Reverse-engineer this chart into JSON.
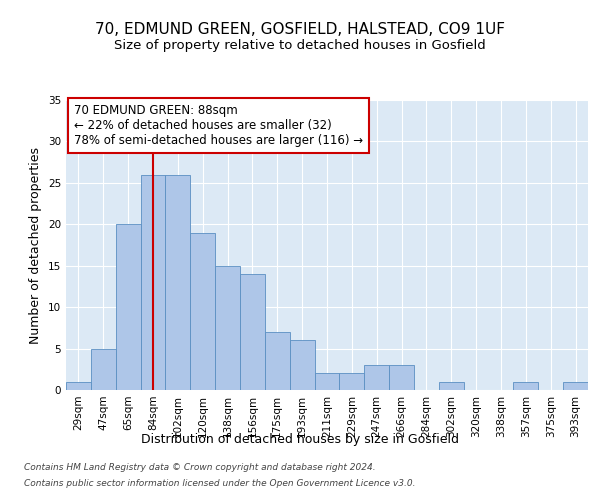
{
  "title_line1": "70, EDMUND GREEN, GOSFIELD, HALSTEAD, CO9 1UF",
  "title_line2": "Size of property relative to detached houses in Gosfield",
  "xlabel": "Distribution of detached houses by size in Gosfield",
  "ylabel": "Number of detached properties",
  "footnote1": "Contains HM Land Registry data © Crown copyright and database right 2024.",
  "footnote2": "Contains public sector information licensed under the Open Government Licence v3.0.",
  "annotation_line1": "70 EDMUND GREEN: 88sqm",
  "annotation_line2": "← 22% of detached houses are smaller (32)",
  "annotation_line3": "78% of semi-detached houses are larger (116) →",
  "bar_labels": [
    "29sqm",
    "47sqm",
    "65sqm",
    "84sqm",
    "102sqm",
    "120sqm",
    "138sqm",
    "156sqm",
    "175sqm",
    "193sqm",
    "211sqm",
    "229sqm",
    "247sqm",
    "266sqm",
    "284sqm",
    "302sqm",
    "320sqm",
    "338sqm",
    "357sqm",
    "375sqm",
    "393sqm"
  ],
  "bar_values": [
    1,
    5,
    20,
    26,
    26,
    19,
    15,
    14,
    7,
    6,
    2,
    2,
    3,
    3,
    0,
    1,
    0,
    0,
    1,
    0,
    1
  ],
  "bar_color": "#aec6e8",
  "bar_edge_color": "#5a8fc2",
  "vline_x": 3.0,
  "vline_color": "#cc0000",
  "ylim": [
    0,
    35
  ],
  "yticks": [
    0,
    5,
    10,
    15,
    20,
    25,
    30,
    35
  ],
  "background_color": "#dce9f5",
  "grid_color": "#ffffff",
  "title_fontsize": 11,
  "subtitle_fontsize": 9.5,
  "axis_label_fontsize": 9,
  "tick_fontsize": 7.5,
  "annotation_fontsize": 8.5,
  "footnote_fontsize": 6.5
}
